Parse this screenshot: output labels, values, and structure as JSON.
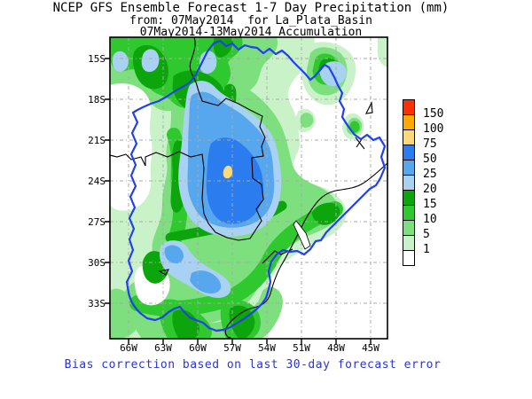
{
  "title": {
    "line1": "NCEP GFS Ensemble Forecast 1-7 Day Precipitation (mm)",
    "line2": "from: 07May2014  for La_Plata_Basin",
    "line3": "07May2014-13May2014 Accumulation"
  },
  "caption": "Bias correction based on last 30-day forecast error",
  "axes": {
    "lat": [
      "15S",
      "18S",
      "21S",
      "24S",
      "27S",
      "30S",
      "33S"
    ],
    "lon": [
      "66W",
      "63W",
      "60W",
      "57W",
      "54W",
      "51W",
      "48W",
      "45W"
    ]
  },
  "colorbar": {
    "segments": [
      {
        "label": "150",
        "color": "#fa3200"
      },
      {
        "label": "100",
        "color": "#ffa800"
      },
      {
        "label": "75",
        "color": "#ffd878"
      },
      {
        "label": "50",
        "color": "#2b7cee"
      },
      {
        "label": "25",
        "color": "#57a7ee"
      },
      {
        "label": "20",
        "color": "#a9d2f2"
      },
      {
        "label": "15",
        "color": "#0ca50c"
      },
      {
        "label": "10",
        "color": "#2fc92f"
      },
      {
        "label": "5",
        "color": "#7ddf7d"
      },
      {
        "label": "1",
        "color": "#c9f2c9"
      },
      {
        "label": "",
        "color": "#ffffff"
      }
    ]
  },
  "palette": {
    "p1": "#c9f2c9",
    "p5": "#7ddf7d",
    "p10": "#2fc92f",
    "p15": "#0ca50c",
    "p20": "#a9d2f2",
    "p25": "#57a7ee",
    "p50": "#2b7cee",
    "p75": "#ffd878",
    "white": "#ffffff",
    "basin_outline": "#2240ef",
    "country_border": "#000000",
    "grid": "#aaaaaa",
    "frame": "#000000",
    "caption_text": "#2b35d0"
  }
}
